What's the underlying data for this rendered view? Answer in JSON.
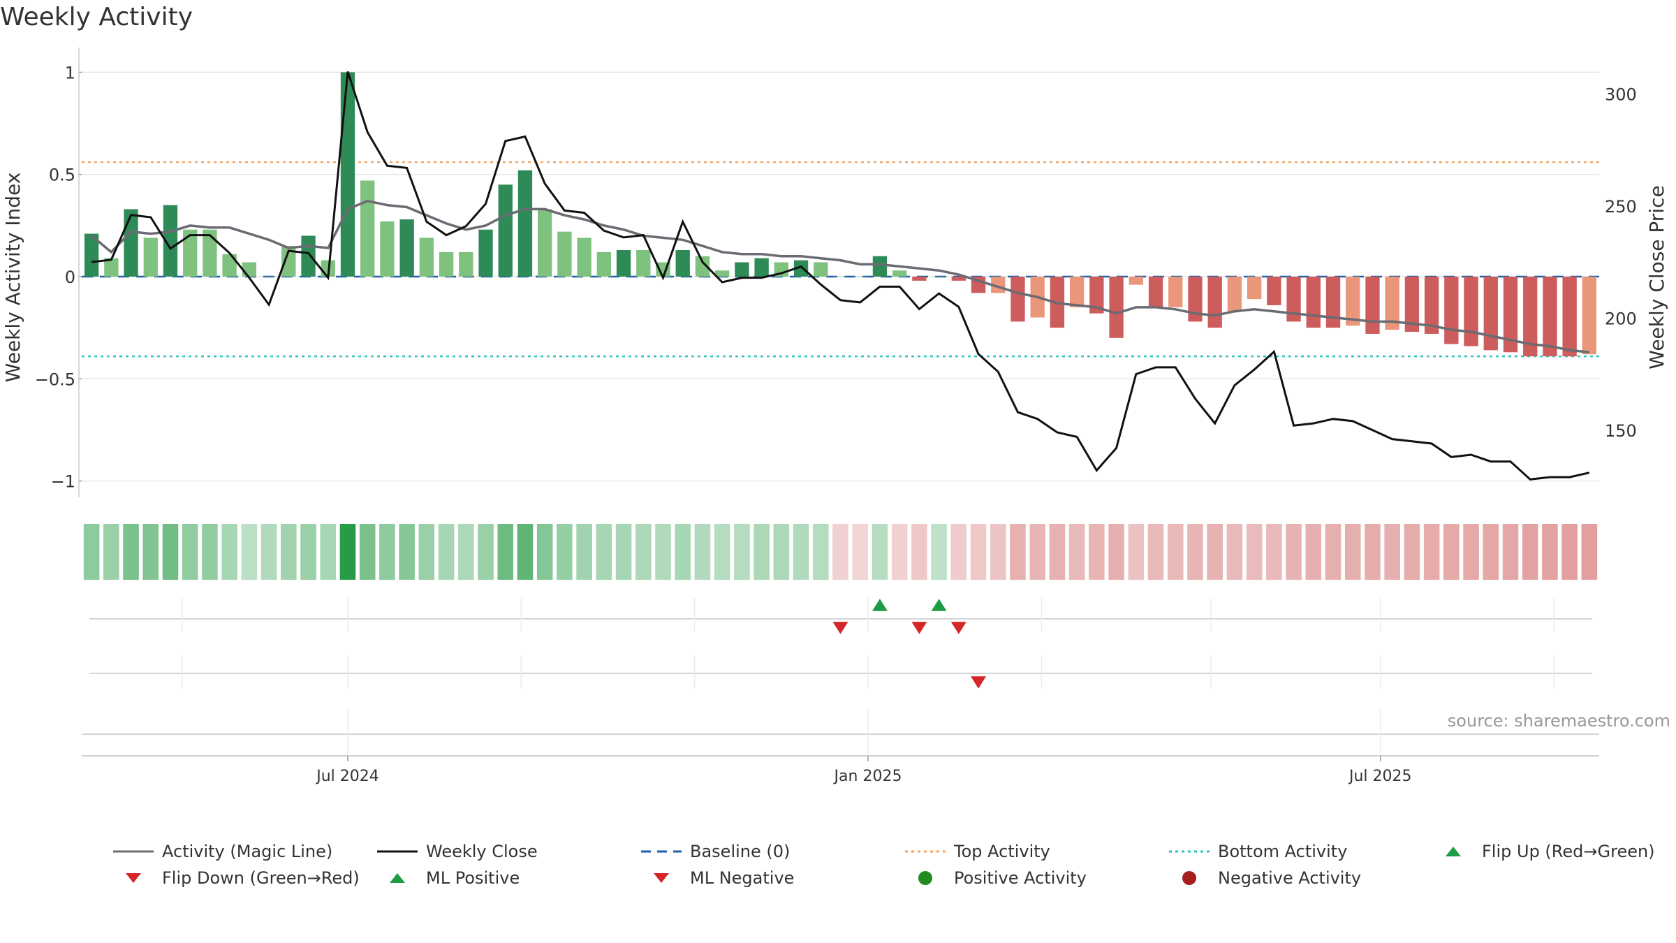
{
  "title": "Weekly Activity",
  "source": "source: sharemaestro.com",
  "left_axis_label": "Weekly Activity Index",
  "right_axis_label": "Weekly Close Price",
  "colors": {
    "strong_green": "#2e8b57",
    "light_green": "#7fc17f",
    "strong_red": "#cd5c5c",
    "light_red": "#e9967a",
    "magic_line": "#6b6b73",
    "close_line": "#111111",
    "baseline": "#1f5fa8",
    "top_line": "#f4a460",
    "bottom_line": "#2ec4b6",
    "up_marker": "#1e9b45",
    "down_marker": "#d62728",
    "pos_dot": "#228b22",
    "neg_dot": "#a61e1e"
  },
  "chart_data": {
    "type": "bar",
    "x_ticks": [
      "Jul 2024",
      "Jan 2025",
      "Jul 2025"
    ],
    "left_ticks": [
      "1",
      "0.5",
      "0",
      "−0.5",
      "−1"
    ],
    "right_ticks": [
      "300",
      "250",
      "200",
      "150"
    ],
    "ylim_left": [
      -1.08,
      1.08
    ],
    "ylim_right": [
      120,
      317
    ],
    "top_activity": 0.56,
    "bottom_activity": -0.39,
    "baseline": 0,
    "n_weeks": 77,
    "week_start": "2024-04-01",
    "activity": [
      0.21,
      0.09,
      0.33,
      0.19,
      0.35,
      0.23,
      0.23,
      0.11,
      0.07,
      0.0,
      0.15,
      0.2,
      0.08,
      1.0,
      0.47,
      0.27,
      0.28,
      0.19,
      0.12,
      0.12,
      0.23,
      0.45,
      0.52,
      0.33,
      0.22,
      0.19,
      0.12,
      0.13,
      0.13,
      0.07,
      0.13,
      0.1,
      0.03,
      0.07,
      0.09,
      0.07,
      0.08,
      0.07,
      0.0,
      0.0,
      0.1,
      0.03,
      -0.02,
      0.0,
      -0.02,
      -0.08,
      -0.08,
      -0.22,
      -0.2,
      -0.25,
      -0.15,
      -0.18,
      -0.3,
      -0.04,
      -0.15,
      -0.15,
      -0.22,
      -0.25,
      -0.17,
      -0.11,
      -0.14,
      -0.22,
      -0.25,
      -0.25,
      -0.24,
      -0.28,
      -0.26,
      -0.27,
      -0.28,
      -0.33,
      -0.34,
      -0.36,
      -0.37,
      -0.39,
      -0.39,
      -0.39,
      -0.38
    ],
    "activity_strong": [
      1,
      0,
      1,
      0,
      1,
      0,
      0,
      0,
      0,
      0,
      0,
      1,
      0,
      1,
      0,
      0,
      1,
      0,
      0,
      0,
      1,
      1,
      1,
      0,
      0,
      0,
      0,
      1,
      0,
      0,
      1,
      0,
      0,
      1,
      1,
      0,
      1,
      0,
      0,
      0,
      1,
      0,
      1,
      0,
      1,
      1,
      0,
      1,
      0,
      1,
      0,
      1,
      1,
      0,
      1,
      0,
      1,
      1,
      0,
      0,
      1,
      1,
      1,
      1,
      0,
      1,
      0,
      1,
      1,
      1,
      1,
      1,
      1,
      1,
      1,
      1,
      0
    ],
    "magic_line": [
      0.2,
      0.12,
      0.22,
      0.21,
      0.22,
      0.25,
      0.24,
      0.24,
      0.21,
      0.18,
      0.14,
      0.15,
      0.14,
      0.33,
      0.37,
      0.35,
      0.34,
      0.3,
      0.26,
      0.23,
      0.25,
      0.3,
      0.33,
      0.33,
      0.3,
      0.28,
      0.25,
      0.23,
      0.2,
      0.19,
      0.18,
      0.15,
      0.12,
      0.11,
      0.11,
      0.1,
      0.1,
      0.09,
      0.08,
      0.06,
      0.06,
      0.05,
      0.04,
      0.03,
      0.01,
      -0.02,
      -0.05,
      -0.08,
      -0.1,
      -0.13,
      -0.14,
      -0.15,
      -0.18,
      -0.15,
      -0.15,
      -0.16,
      -0.18,
      -0.19,
      -0.17,
      -0.16,
      -0.17,
      -0.18,
      -0.19,
      -0.2,
      -0.21,
      -0.22,
      -0.22,
      -0.23,
      -0.24,
      -0.26,
      -0.27,
      -0.29,
      -0.31,
      -0.33,
      -0.34,
      -0.36,
      -0.37
    ],
    "weekly_close": [
      225,
      226,
      246,
      245,
      231,
      237,
      237,
      229,
      218,
      206,
      230,
      229,
      218,
      310,
      283,
      268,
      267,
      243,
      237,
      241,
      251,
      279,
      281,
      260,
      248,
      247,
      239,
      236,
      237,
      218,
      243,
      225,
      216,
      218,
      218,
      220,
      223,
      215,
      208,
      207,
      214,
      214,
      204,
      211,
      205,
      184,
      176,
      158,
      155,
      149,
      147,
      132,
      142,
      175,
      178,
      178,
      164,
      153,
      170,
      177,
      185,
      152,
      153,
      155,
      154,
      150,
      146,
      145,
      144,
      138,
      139,
      136,
      136,
      128,
      129,
      129,
      131
    ],
    "heat_strip": [
      0.45,
      0.38,
      0.55,
      0.52,
      0.6,
      0.42,
      0.42,
      0.3,
      0.2,
      0.26,
      0.34,
      0.38,
      0.3,
      1.0,
      0.55,
      0.45,
      0.48,
      0.38,
      0.3,
      0.28,
      0.38,
      0.62,
      0.7,
      0.5,
      0.4,
      0.34,
      0.3,
      0.3,
      0.28,
      0.26,
      0.3,
      0.26,
      0.24,
      0.24,
      0.28,
      0.28,
      0.26,
      0.24,
      -0.15,
      -0.12,
      0.22,
      -0.15,
      -0.2,
      0.18,
      -0.18,
      -0.2,
      -0.22,
      -0.35,
      -0.32,
      -0.35,
      -0.3,
      -0.32,
      -0.36,
      -0.24,
      -0.3,
      -0.3,
      -0.32,
      -0.34,
      -0.3,
      -0.28,
      -0.3,
      -0.34,
      -0.36,
      -0.36,
      -0.36,
      -0.38,
      -0.36,
      -0.38,
      -0.38,
      -0.4,
      -0.4,
      -0.42,
      -0.42,
      -0.44,
      -0.44,
      -0.46,
      -0.46
    ],
    "ml_positive_weeks": [
      40,
      43
    ],
    "ml_negative_weeks": [
      38,
      42,
      44
    ],
    "flip_down_weeks": [
      45
    ],
    "x_tick_weeks": [
      13.0,
      39.4,
      65.4
    ],
    "minor_tick_weeks": [
      4.6,
      21.8,
      30.6,
      48.2,
      56.8,
      74.2
    ]
  },
  "legend": [
    {
      "label": "Activity (Magic Line)",
      "key": "line-magic"
    },
    {
      "label": "Weekly Close",
      "key": "line-close"
    },
    {
      "label": "Baseline (0)",
      "key": "dash-baseline"
    },
    {
      "label": "Top Activity",
      "key": "dot-top"
    },
    {
      "label": "Bottom Activity",
      "key": "dot-bottom"
    },
    {
      "label": "Flip Up (Red→Green)",
      "key": "tri-up"
    },
    {
      "label": "Flip Down (Green→Red)",
      "key": "tri-down"
    },
    {
      "label": "ML Positive",
      "key": "tri-up"
    },
    {
      "label": "ML Negative",
      "key": "tri-down"
    },
    {
      "label": "Positive Activity",
      "key": "dot-pos"
    },
    {
      "label": "Negative Activity",
      "key": "dot-neg"
    }
  ]
}
